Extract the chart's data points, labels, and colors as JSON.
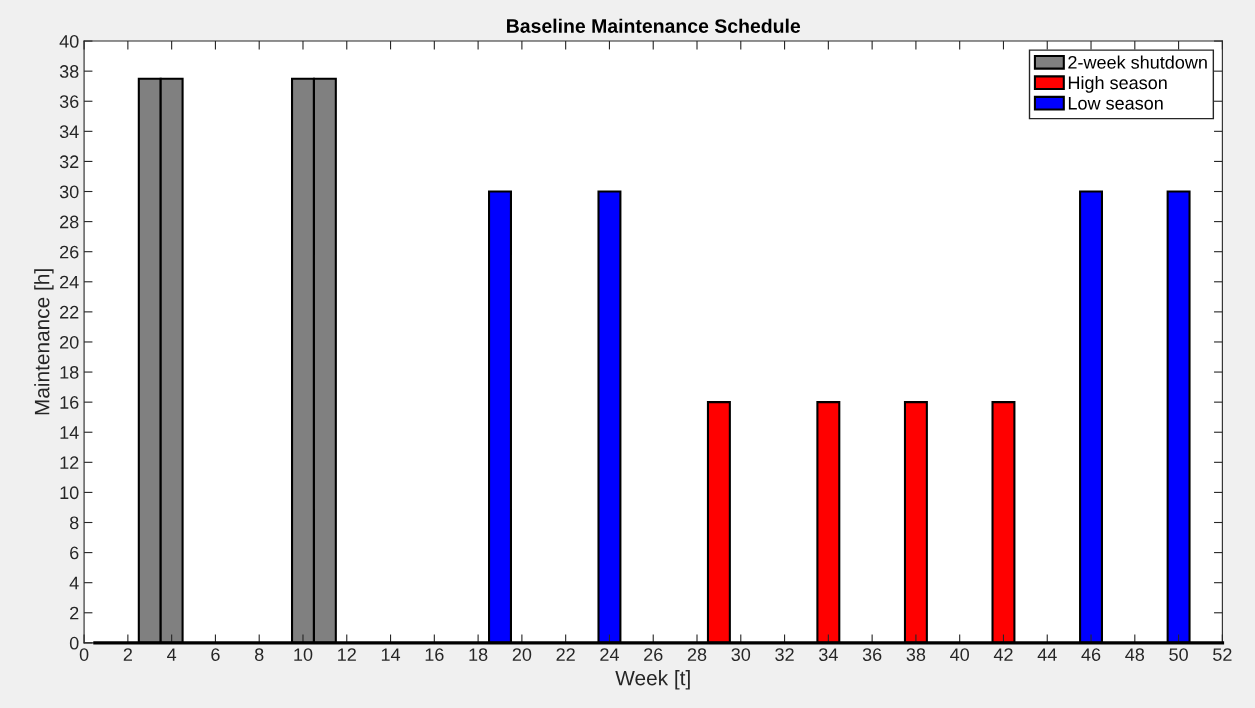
{
  "chart_data": {
    "type": "bar",
    "title": "Baseline Maintenance Schedule",
    "xlabel": "Week [t]",
    "ylabel": "Maintenance [h]",
    "series": [
      {
        "name": "2-week shutdown",
        "color": "#808080",
        "x": [
          3,
          4,
          10,
          11
        ],
        "values": [
          37.5,
          37.5,
          37.5,
          37.5
        ]
      },
      {
        "name": "High season",
        "color": "#ff0000",
        "x": [
          29,
          34,
          38,
          42
        ],
        "values": [
          16,
          16,
          16,
          16
        ]
      },
      {
        "name": "Low season",
        "color": "#0000ff",
        "x": [
          19,
          24,
          46,
          50
        ],
        "values": [
          30,
          30,
          30,
          30
        ]
      }
    ],
    "ref_lines": [
      {
        "axis": "y",
        "value": 0,
        "color": "#000000"
      }
    ],
    "xlim": [
      0,
      52
    ],
    "xticks": [
      0,
      2,
      4,
      6,
      8,
      10,
      12,
      14,
      16,
      18,
      20,
      22,
      24,
      26,
      28,
      30,
      32,
      34,
      36,
      38,
      40,
      42,
      44,
      46,
      48,
      50,
      52
    ],
    "ylim": [
      0,
      40
    ],
    "yticks": [
      0,
      2,
      4,
      6,
      8,
      10,
      12,
      14,
      16,
      18,
      20,
      22,
      24,
      26,
      28,
      30,
      32,
      34,
      36,
      38,
      40
    ],
    "grid": false,
    "legend": "top right"
  }
}
